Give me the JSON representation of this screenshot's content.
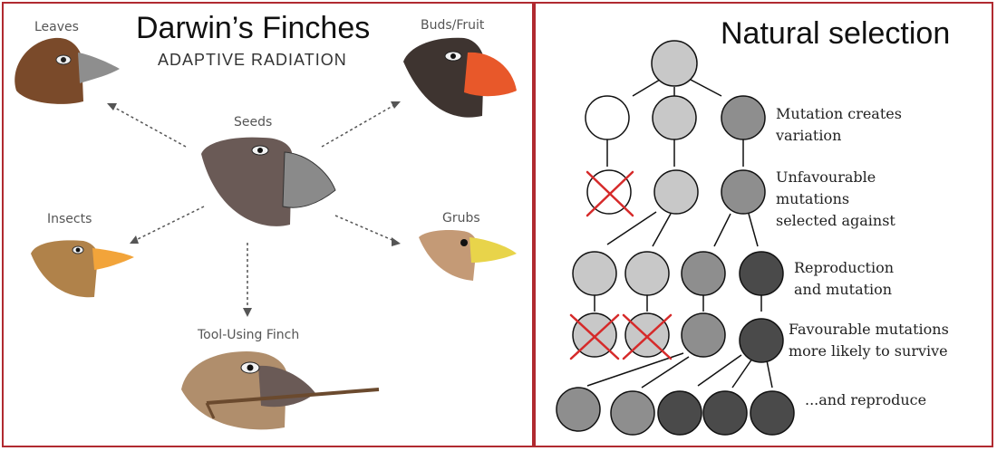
{
  "left": {
    "title": "Darwin’s Finches",
    "subtitle": "ADAPTIVE RADIATION",
    "center_label": "Seeds",
    "finches": [
      {
        "label": "Leaves"
      },
      {
        "label": "Buds/Fruit"
      },
      {
        "label": "Insects"
      },
      {
        "label": "Grubs"
      },
      {
        "label": "Tool-Using Finch"
      }
    ]
  },
  "right": {
    "title": "Natural selection",
    "steps": [
      {
        "line1": "Mutation creates",
        "line2": "variation"
      },
      {
        "line1": "Unfavourable",
        "line2": "mutations",
        "line3": "selected against"
      },
      {
        "line1": "Reproduction",
        "line2": "and mutation"
      },
      {
        "line1": "Favourable mutations",
        "line2": "more likely to survive"
      },
      {
        "line1": "...and reproduce"
      }
    ]
  },
  "colors": {
    "border": "#b02a30",
    "circle_white": "#ffffff",
    "circle_light": "#c8c8c8",
    "circle_mid": "#8e8e8e",
    "circle_dark": "#4a4a4a",
    "cross": "#d62a2a"
  }
}
